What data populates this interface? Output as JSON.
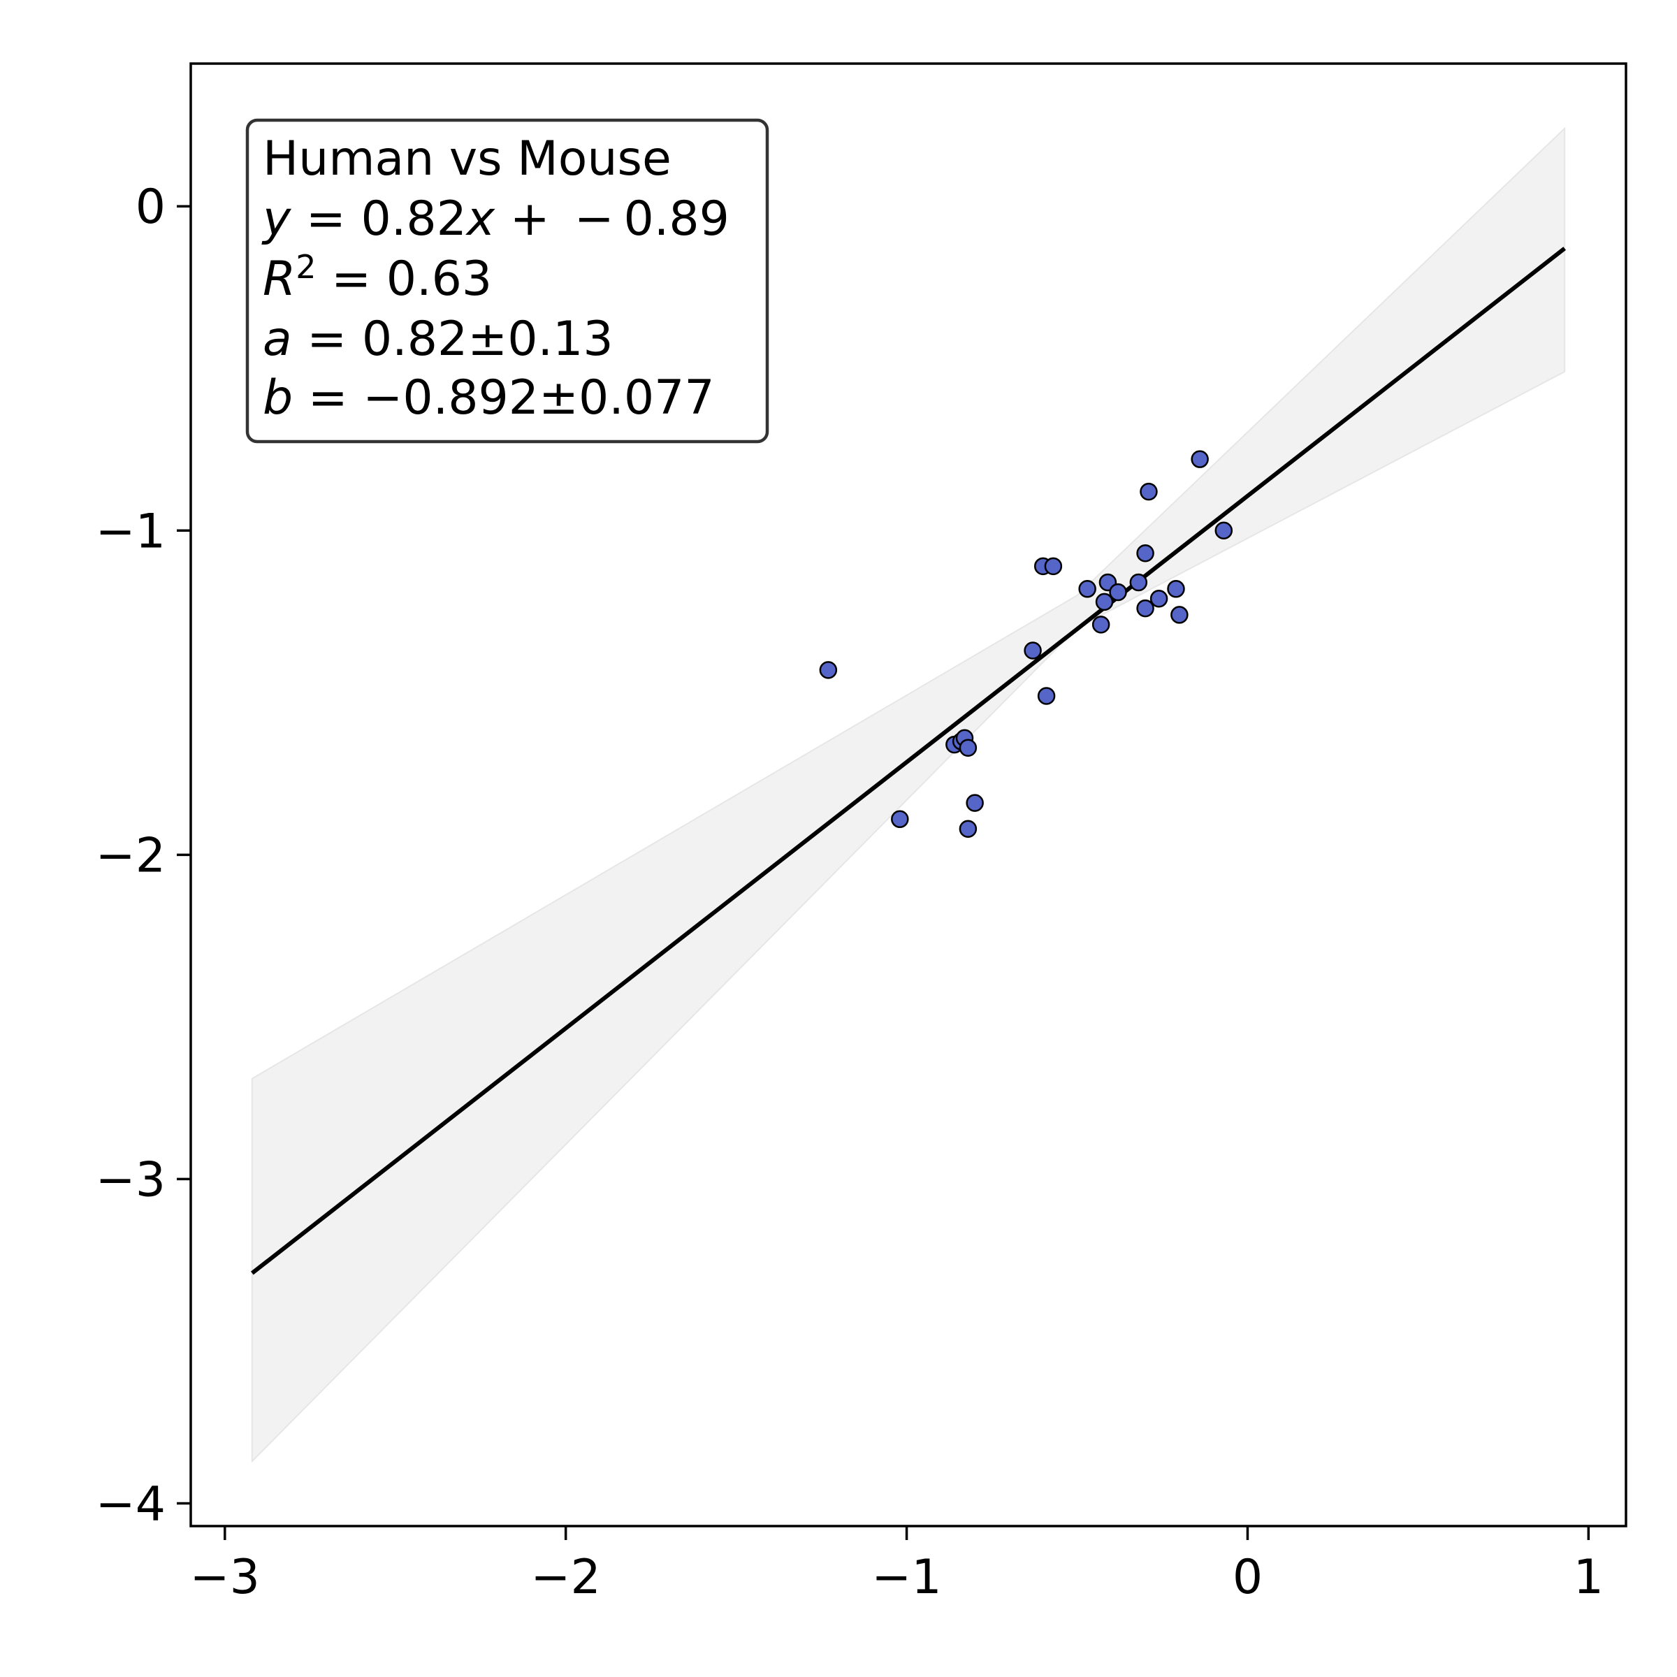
{
  "chart_data": {
    "type": "scatter",
    "title": "",
    "xlabel": "",
    "ylabel": "",
    "xlim": [
      -3.1,
      1.11
    ],
    "ylim": [
      -4.07,
      0.44
    ],
    "x_ticks": [
      -3,
      -2,
      -1,
      0,
      1
    ],
    "y_ticks": [
      0,
      -1,
      -2,
      -3,
      -4
    ],
    "x_tick_labels": [
      "−3",
      "−2",
      "−1",
      "0",
      "1"
    ],
    "y_tick_labels": [
      "0",
      "−1",
      "−2",
      "−3",
      "−4"
    ],
    "grid": false,
    "point_color": "#5565c8",
    "point_edge_color": "#000000",
    "line_color": "#000000",
    "band_color": "#f2f2f2",
    "points": {
      "x": [
        -0.14,
        -0.29,
        -0.07,
        -0.3,
        -0.6,
        -0.57,
        -0.47,
        -0.41,
        -0.38,
        -0.32,
        -0.21,
        -0.26,
        -0.42,
        -0.3,
        -0.2,
        -0.43,
        -0.63,
        -1.23,
        -0.59,
        -0.86,
        -0.84,
        -0.83,
        -0.82,
        -0.8,
        -1.02,
        -0.82
      ],
      "y": [
        -0.78,
        -0.88,
        -1.0,
        -1.07,
        -1.11,
        -1.11,
        -1.18,
        -1.16,
        -1.19,
        -1.16,
        -1.18,
        -1.21,
        -1.22,
        -1.24,
        -1.26,
        -1.29,
        -1.37,
        -1.43,
        -1.51,
        -1.66,
        -1.65,
        -1.64,
        -1.67,
        -1.84,
        -1.89,
        -1.92
      ]
    },
    "fit_line": {
      "x": [
        -2.92,
        0.93
      ],
      "y": [
        -3.29,
        -0.13
      ]
    },
    "confidence_band": {
      "x": [
        -2.92,
        -0.5,
        0.93
      ],
      "upper": [
        -2.69,
        -1.2,
        0.24
      ],
      "lower": [
        -3.87,
        -1.3,
        -0.51
      ]
    }
  },
  "annotation": {
    "title": "Human  vs Mouse",
    "eq_y": "y",
    "eq_rest": " = 0.82",
    "eq_x": "x",
    "eq_tail": " +  − 0.89",
    "r2_R": "R",
    "r2_sup": "2",
    "r2_rest": " = 0.63",
    "a_sym": "a",
    "a_rest": " = 0.82±0.13",
    "b_sym": "b",
    "b_rest": " = −0.892±0.077"
  }
}
